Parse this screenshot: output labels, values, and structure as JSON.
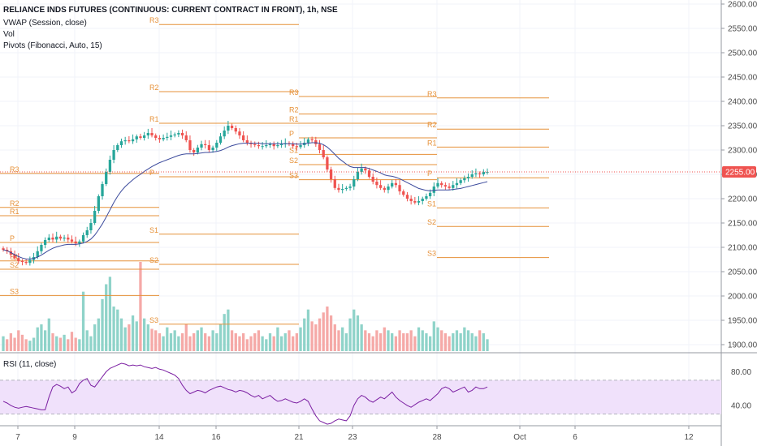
{
  "header": {
    "symbol_title": "RELIANCE INDS FUTURES (CONTINUOUS: CURRENT CONTRACT IN FRONT), 1h, NSE",
    "indicator_1": "VWAP (Session, close)",
    "indicator_2": "Vol",
    "indicator_3": "Pivots (Fibonacci, Auto, 15)"
  },
  "rsi_panel": {
    "title": "RSI (11, close)"
  },
  "price_axis": {
    "labels": [
      "2600.00",
      "2550.00",
      "2500.00",
      "2450.00",
      "2400.00",
      "2350.00",
      "2300.00",
      "2250.00",
      "2200.00",
      "2150.00",
      "2100.00",
      "2050.00",
      "2000.00",
      "1950.00",
      "1900.00"
    ],
    "current_price_label": "2255.00"
  },
  "rsi_axis": {
    "labels": [
      "80.00",
      "40.00"
    ]
  },
  "time_axis": {
    "labels": [
      "7",
      "9",
      "14",
      "16",
      "21",
      "23",
      "28",
      "Oct",
      "6",
      "12"
    ]
  },
  "colors": {
    "up": "#26a69a",
    "down": "#ef5350",
    "vol_up": "#8fd3c9",
    "vol_down": "#f5a9a7",
    "pivot": "#e69138",
    "vwap": "#3b4a9c",
    "rsi_line": "#7b1fa2",
    "rsi_band": "#f0e1fb",
    "price_marker": "#ef5350",
    "axis_text": "#4a4a4a"
  },
  "chart_data": [
    {
      "type": "candlestick",
      "title": "RELIANCE INDS FUTURES (CONTINUOUS: CURRENT CONTRACT IN FRONT), 1h, NSE",
      "x_labels": [
        "7",
        "9",
        "14",
        "16",
        "21",
        "23",
        "28",
        "Oct",
        "6",
        "12"
      ],
      "ylim": [
        1890,
        2600
      ],
      "last_price": 2255,
      "close_path": [
        2095,
        2092,
        2085,
        2078,
        2072,
        2070,
        2068,
        2074,
        2080,
        2092,
        2105,
        2115,
        2120,
        2116,
        2122,
        2118,
        2120,
        2116,
        2112,
        2108,
        2112,
        2125,
        2135,
        2150,
        2175,
        2205,
        2230,
        2255,
        2280,
        2300,
        2310,
        2318,
        2320,
        2318,
        2322,
        2328,
        2325,
        2330,
        2335,
        2330,
        2325,
        2322,
        2325,
        2327,
        2330,
        2332,
        2335,
        2330,
        2320,
        2300,
        2295,
        2305,
        2312,
        2310,
        2300,
        2305,
        2315,
        2328,
        2340,
        2350,
        2345,
        2338,
        2330,
        2320,
        2315,
        2312,
        2310,
        2308,
        2308,
        2310,
        2312,
        2308,
        2310,
        2312,
        2314,
        2312,
        2308,
        2306,
        2310,
        2315,
        2322,
        2320,
        2312,
        2300,
        2285,
        2260,
        2240,
        2222,
        2218,
        2220,
        2222,
        2225,
        2240,
        2255,
        2262,
        2258,
        2245,
        2235,
        2228,
        2222,
        2218,
        2225,
        2232,
        2228,
        2215,
        2208,
        2200,
        2195,
        2192,
        2195,
        2200,
        2205,
        2212,
        2225,
        2232,
        2228,
        2225,
        2222,
        2228,
        2232,
        2238,
        2242,
        2245,
        2250,
        2252,
        2250,
        2255,
        2255
      ]
    },
    {
      "type": "line",
      "title": "VWAP (Session, close)",
      "values": [
        2095,
        2093,
        2089,
        2085,
        2081,
        2078,
        2076,
        2076,
        2077,
        2080,
        2084,
        2089,
        2094,
        2098,
        2101,
        2103,
        2105,
        2106,
        2106,
        2106,
        2107,
        2109,
        2112,
        2117,
        2125,
        2136,
        2148,
        2162,
        2177,
        2192,
        2205,
        2216,
        2225,
        2232,
        2239,
        2245,
        2250,
        2256,
        2261,
        2266,
        2270,
        2274,
        2277,
        2280,
        2283,
        2286,
        2289,
        2291,
        2292,
        2292,
        2292,
        2293,
        2294,
        2295,
        2295,
        2296,
        2297,
        2299,
        2302,
        2306,
        2309,
        2311,
        2313,
        2314,
        2314,
        2314,
        2314,
        2314,
        2313,
        2313,
        2313,
        2313,
        2313,
        2313,
        2313,
        2313,
        2313,
        2312,
        2312,
        2313,
        2314,
        2315,
        2315,
        2314,
        2311,
        2306,
        2299,
        2291,
        2283,
        2277,
        2271,
        2266,
        2264,
        2264,
        2264,
        2264,
        2262,
        2259,
        2256,
        2253,
        2249,
        2247,
        2246,
        2244,
        2241,
        2237,
        2233,
        2229,
        2225,
        2221,
        2219,
        2217,
        2216,
        2217,
        2218,
        2218,
        2218,
        2218,
        2219,
        2220,
        2221,
        2223,
        2225,
        2227,
        2229,
        2231,
        2233,
        2235
      ]
    },
    {
      "type": "bar",
      "title": "Vol",
      "values": [
        10,
        8,
        12,
        9,
        14,
        11,
        8,
        7,
        9,
        16,
        18,
        14,
        22,
        12,
        10,
        9,
        11,
        8,
        13,
        9,
        8,
        40,
        14,
        10,
        18,
        22,
        35,
        45,
        50,
        30,
        28,
        22,
        16,
        18,
        24,
        20,
        60,
        22,
        18,
        15,
        14,
        12,
        10,
        16,
        12,
        14,
        10,
        12,
        18,
        10,
        12,
        14,
        16,
        12,
        10,
        14,
        12,
        18,
        25,
        28,
        14,
        12,
        10,
        12,
        8,
        10,
        12,
        14,
        10,
        8,
        12,
        10,
        16,
        10,
        12,
        14,
        10,
        12,
        16,
        22,
        28,
        20,
        18,
        22,
        26,
        30,
        24,
        18,
        14,
        16,
        12,
        22,
        28,
        24,
        18,
        14,
        12,
        10,
        14,
        12,
        16,
        14,
        12,
        10,
        14,
        12,
        12,
        14,
        10,
        16,
        14,
        12,
        10,
        20,
        16,
        14,
        12,
        10,
        12,
        14,
        12,
        16,
        14,
        12,
        10,
        14,
        12,
        8
      ]
    },
    {
      "type": "line",
      "title": "RSI (11, close)",
      "ylim": [
        20,
        95
      ],
      "bands": [
        70,
        30
      ],
      "values": [
        45,
        43,
        40,
        38,
        37,
        38,
        39,
        38,
        37,
        36,
        35,
        35,
        50,
        62,
        65,
        63,
        60,
        62,
        55,
        58,
        66,
        70,
        72,
        64,
        62,
        68,
        74,
        80,
        84,
        86,
        88,
        90,
        89,
        87,
        88,
        87,
        88,
        86,
        85,
        84,
        85,
        83,
        82,
        80,
        78,
        76,
        72,
        64,
        58,
        54,
        56,
        58,
        57,
        55,
        58,
        60,
        62,
        63,
        61,
        59,
        58,
        56,
        58,
        57,
        55,
        52,
        50,
        52,
        48,
        50,
        52,
        48,
        45,
        46,
        48,
        46,
        44,
        43,
        45,
        48,
        45,
        36,
        28,
        22,
        20,
        18,
        19,
        22,
        24,
        23,
        22,
        28,
        40,
        48,
        52,
        50,
        46,
        44,
        47,
        50,
        48,
        52,
        56,
        50,
        46,
        43,
        40,
        38,
        41,
        44,
        46,
        48,
        46,
        50,
        54,
        60,
        62,
        60,
        56,
        58,
        60,
        62,
        56,
        58,
        62,
        60,
        60,
        62
      ]
    },
    {
      "type": "line",
      "title": "Pivots (Fibonacci, Auto, 15)",
      "periods": [
        {
          "levels": [
            {
              "name": "R3",
              "value": 2252
            },
            {
              "name": "R2",
              "value": 2182
            },
            {
              "name": "R1",
              "value": 2165
            },
            {
              "name": "P",
              "value": 2110
            },
            {
              "name": "S1",
              "value": 2072
            },
            {
              "name": "S2",
              "value": 2055
            },
            {
              "name": "S3",
              "value": 2001
            }
          ]
        },
        {
          "levels": [
            {
              "name": "R3",
              "value": 2558
            },
            {
              "name": "R2",
              "value": 2420
            },
            {
              "name": "R1",
              "value": 2355
            },
            {
              "name": "P",
              "value": 2245
            },
            {
              "name": "S1",
              "value": 2127
            },
            {
              "name": "S2",
              "value": 2065
            },
            {
              "name": "S3",
              "value": 1942
            }
          ]
        },
        {
          "levels": [
            {
              "name": "R3",
              "value": 2410
            },
            {
              "name": "R2",
              "value": 2374
            },
            {
              "name": "R1",
              "value": 2355
            },
            {
              "name": "P",
              "value": 2325
            },
            {
              "name": "S1",
              "value": 2291
            },
            {
              "name": "S2",
              "value": 2270
            },
            {
              "name": "S3",
              "value": 2239
            }
          ]
        },
        {
          "levels": [
            {
              "name": "R3",
              "value": 2407
            },
            {
              "name": "R2",
              "value": 2343
            },
            {
              "name": "R1",
              "value": 2306
            },
            {
              "name": "P",
              "value": 2243
            },
            {
              "name": "S1",
              "value": 2181
            },
            {
              "name": "S2",
              "value": 2143
            },
            {
              "name": "S3",
              "value": 2079
            }
          ]
        }
      ]
    }
  ]
}
